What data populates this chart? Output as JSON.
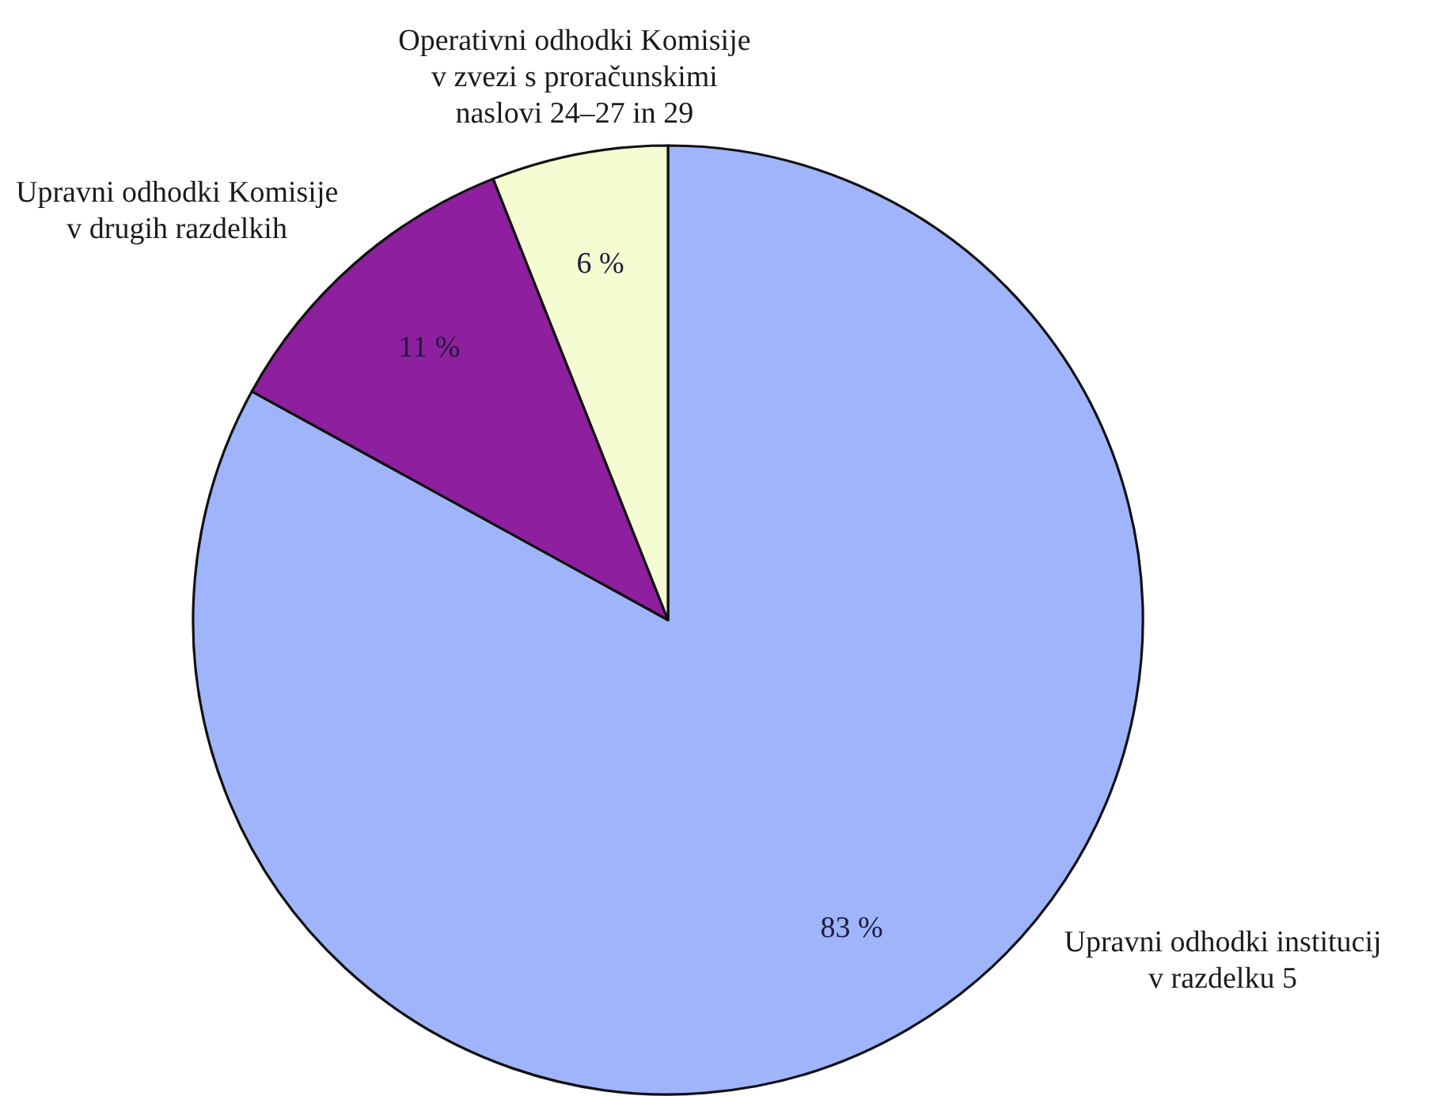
{
  "chart_data": {
    "type": "pie",
    "categories": [
      "Upravni odhodki institucij\nv razdelku 5",
      "Upravni odhodki Komisije\nv drugih razdelkih",
      "Operativni odhodki Komisije\nv zvezi s proračunskimi\nnaslovi 24–27 in 29"
    ],
    "values": [
      83,
      11,
      6
    ],
    "colors": [
      "#a0b4fc",
      "#8e1f9e",
      "#f5fcd2"
    ],
    "value_labels": [
      "83 %",
      "11 %",
      "6 %"
    ]
  }
}
